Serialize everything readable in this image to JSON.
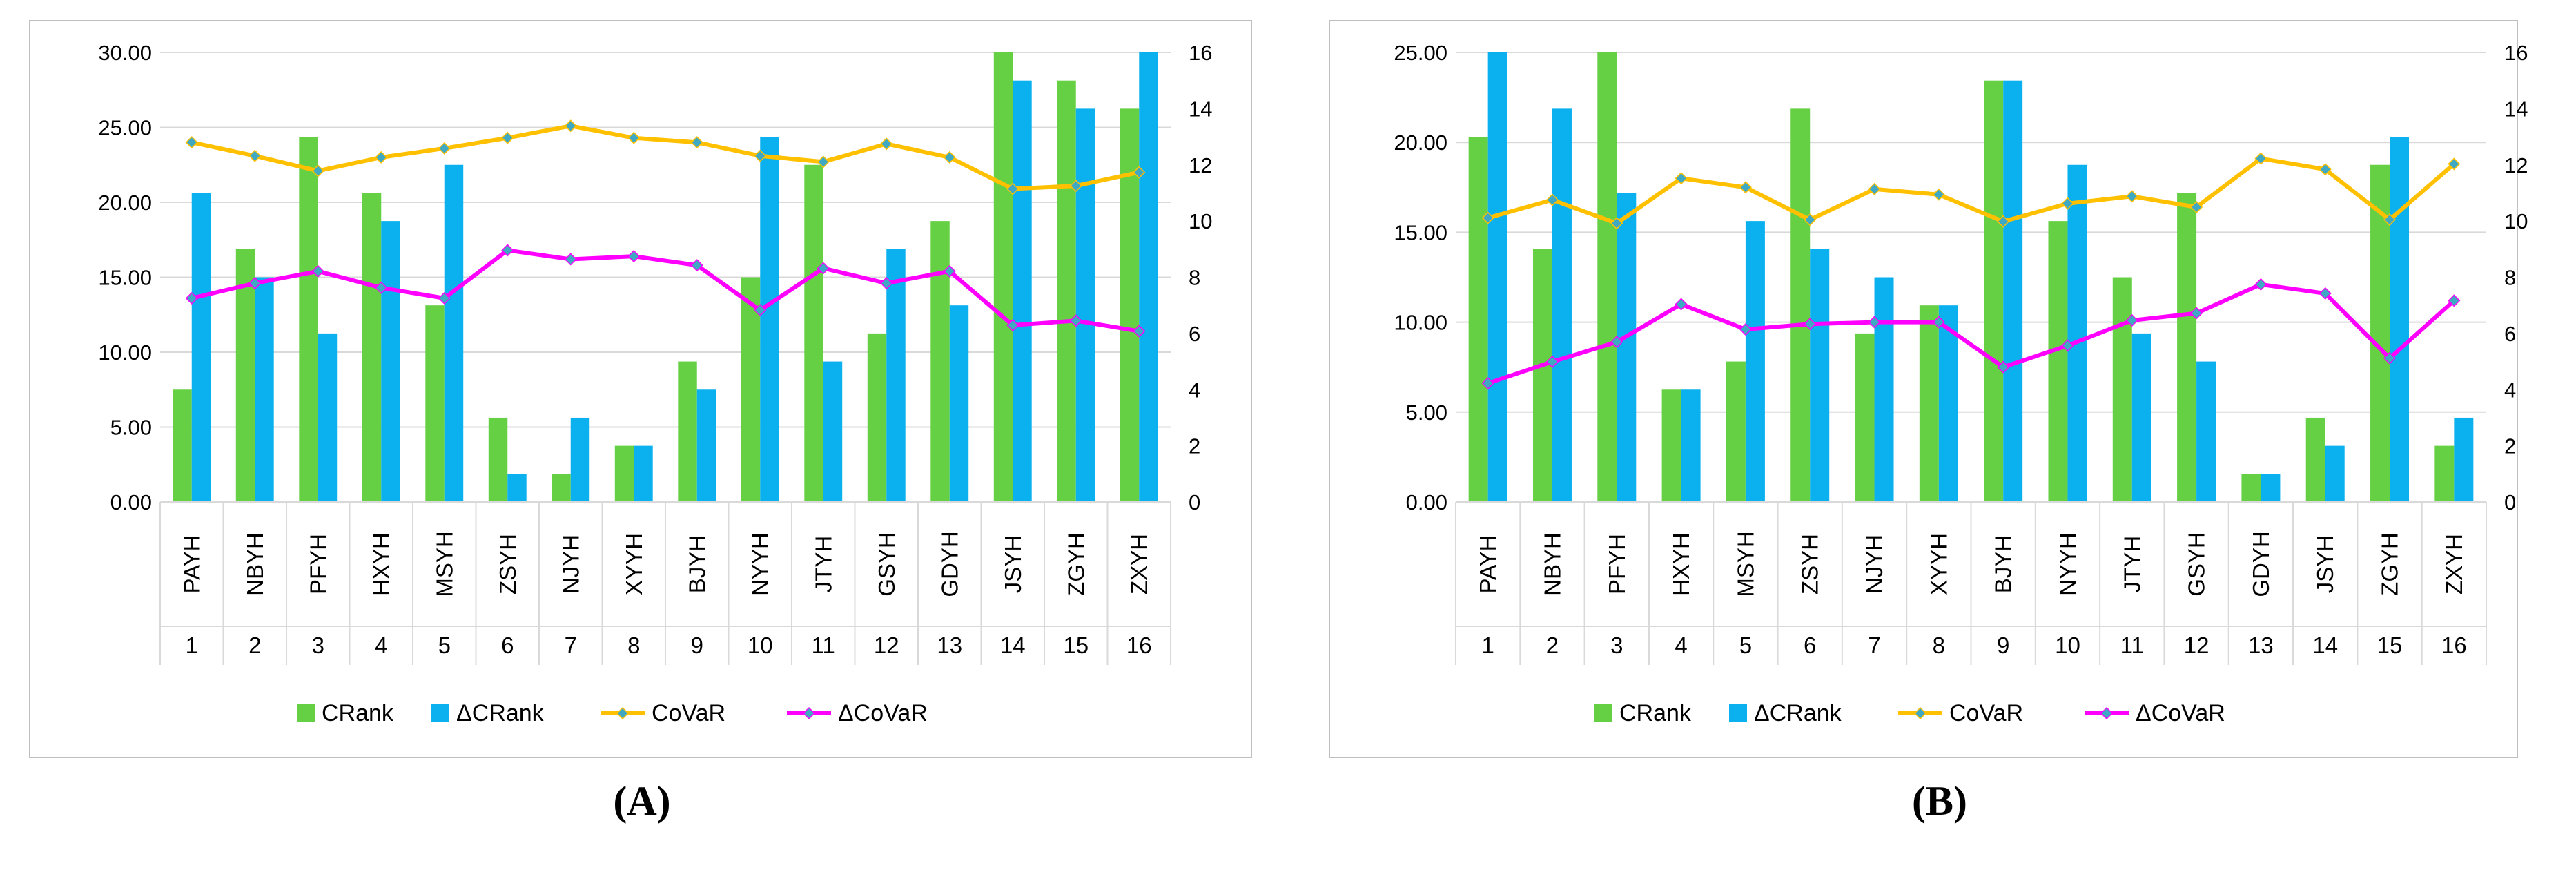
{
  "colors": {
    "crank": "#66D044",
    "dcrank": "#0BB0EF",
    "covar": "#FFC000",
    "dcovar": "#FF00FF",
    "marker": "#3FA9C4",
    "grid": "#D9D9D9",
    "frame": "#BFBFBF",
    "axis_text": "#000000"
  },
  "chart_data": [
    {
      "panel_label": "(A)",
      "type": "bar+line",
      "categories": [
        "PAYH",
        "NBYH",
        "PFYH",
        "HXYH",
        "MSYH",
        "ZSYH",
        "NJYH",
        "XYYH",
        "BJYH",
        "NYYH",
        "JTYH",
        "GSYH",
        "GDYH",
        "JSYH",
        "ZGYH",
        "ZXYH"
      ],
      "rank_labels": [
        "1",
        "2",
        "3",
        "4",
        "5",
        "6",
        "7",
        "8",
        "9",
        "10",
        "11",
        "12",
        "13",
        "14",
        "15",
        "16"
      ],
      "left_ticks": [
        "0.00",
        "5.00",
        "10.00",
        "15.00",
        "20.00",
        "25.00",
        "30.00"
      ],
      "right_ticks": [
        "0",
        "2",
        "4",
        "6",
        "8",
        "10",
        "12",
        "14",
        "16"
      ],
      "ylim_left": [
        0,
        30
      ],
      "ylim_right": [
        0,
        16
      ],
      "series": [
        {
          "name": "CRank",
          "kind": "bar",
          "axis": "right",
          "color_key": "crank",
          "values": [
            4,
            9,
            13,
            11,
            7,
            3,
            1,
            2,
            5,
            8,
            12,
            6,
            10,
            16,
            15,
            14
          ]
        },
        {
          "name": "ΔCRank",
          "kind": "bar",
          "axis": "right",
          "color_key": "dcrank",
          "values": [
            11,
            8,
            6,
            10,
            12,
            1,
            3,
            2,
            4,
            13,
            5,
            9,
            7,
            15,
            14,
            16
          ]
        },
        {
          "name": "CoVaR",
          "kind": "line",
          "axis": "left",
          "color_key": "covar",
          "values": [
            24.0,
            23.1,
            22.1,
            23.0,
            23.6,
            24.3,
            25.1,
            24.3,
            24.0,
            23.1,
            22.7,
            23.9,
            23.0,
            20.9,
            21.1,
            22.0
          ]
        },
        {
          "name": "ΔCoVaR",
          "kind": "line",
          "axis": "left",
          "color_key": "dcovar",
          "values": [
            13.6,
            14.6,
            15.4,
            14.3,
            13.6,
            16.8,
            16.2,
            16.4,
            15.8,
            12.8,
            15.6,
            14.6,
            15.4,
            11.8,
            12.1,
            11.4
          ]
        }
      ],
      "legend": [
        "CRank",
        "ΔCRank",
        "CoVaR",
        "ΔCoVaR"
      ]
    },
    {
      "panel_label": "(B)",
      "type": "bar+line",
      "categories": [
        "PAYH",
        "NBYH",
        "PFYH",
        "HXYH",
        "MSYH",
        "ZSYH",
        "NJYH",
        "XYYH",
        "BJYH",
        "NYYH",
        "JTYH",
        "GSYH",
        "GDYH",
        "JSYH",
        "ZGYH",
        "ZXYH"
      ],
      "rank_labels": [
        "1",
        "2",
        "3",
        "4",
        "5",
        "6",
        "7",
        "8",
        "9",
        "10",
        "11",
        "12",
        "13",
        "14",
        "15",
        "16"
      ],
      "left_ticks": [
        "0.00",
        "5.00",
        "10.00",
        "15.00",
        "20.00",
        "25.00"
      ],
      "right_ticks": [
        "0",
        "2",
        "4",
        "6",
        "8",
        "10",
        "12",
        "14",
        "16"
      ],
      "ylim_left": [
        0,
        25
      ],
      "ylim_right": [
        0,
        16
      ],
      "series": [
        {
          "name": "CRank",
          "kind": "bar",
          "axis": "right",
          "color_key": "crank",
          "values": [
            13,
            9,
            16,
            4,
            5,
            14,
            6,
            7,
            15,
            10,
            8,
            11,
            1,
            3,
            12,
            2
          ]
        },
        {
          "name": "ΔCRank",
          "kind": "bar",
          "axis": "right",
          "color_key": "dcrank",
          "values": [
            16,
            14,
            11,
            4,
            10,
            9,
            8,
            7,
            15,
            12,
            6,
            5,
            1,
            2,
            13,
            3
          ]
        },
        {
          "name": "CoVaR",
          "kind": "line",
          "axis": "left",
          "color_key": "covar",
          "values": [
            15.8,
            16.8,
            15.5,
            18.0,
            17.5,
            15.7,
            17.4,
            17.1,
            15.6,
            16.6,
            17.0,
            16.4,
            19.1,
            18.5,
            15.7,
            18.8
          ]
        },
        {
          "name": "ΔCoVaR",
          "kind": "line",
          "axis": "left",
          "color_key": "dcovar",
          "values": [
            6.6,
            7.8,
            8.9,
            11.0,
            9.6,
            9.9,
            10.0,
            10.0,
            7.5,
            8.7,
            10.1,
            10.5,
            12.1,
            11.6,
            8.0,
            11.2
          ]
        }
      ],
      "legend": [
        "CRank",
        "ΔCRank",
        "CoVaR",
        "ΔCoVaR"
      ]
    }
  ]
}
